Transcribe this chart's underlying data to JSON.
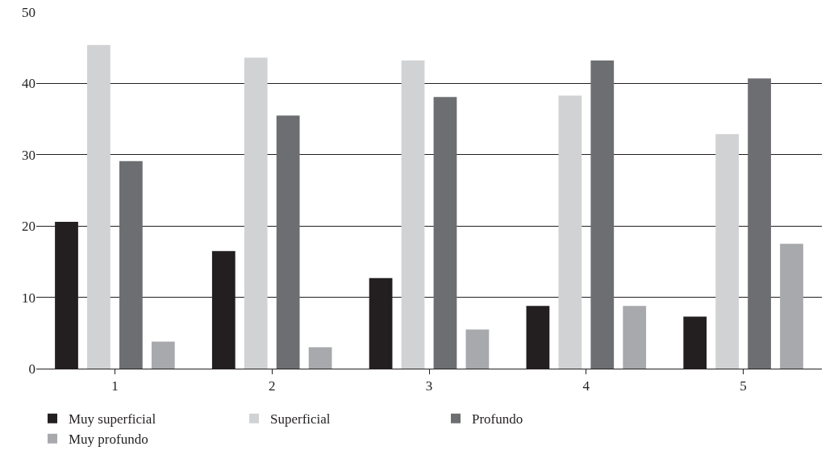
{
  "chart_data": {
    "type": "bar",
    "categories": [
      "1",
      "2",
      "3",
      "4",
      "5"
    ],
    "series": [
      {
        "name": "Muy superficial",
        "color": "#231f20",
        "values": [
          20.6,
          16.5,
          12.7,
          8.8,
          7.3
        ]
      },
      {
        "name": "Superficial",
        "color": "#d1d2d4",
        "values": [
          45.4,
          43.6,
          43.2,
          38.3,
          32.9
        ]
      },
      {
        "name": "Profundo",
        "color": "#6d6e71",
        "values": [
          29.1,
          35.5,
          38.1,
          43.2,
          40.7
        ]
      },
      {
        "name": "Muy profundo",
        "color": "#a7a9ac",
        "values": [
          3.8,
          3.0,
          5.5,
          8.8,
          17.5
        ]
      }
    ],
    "ylim": [
      0,
      50
    ],
    "yticks": [
      0,
      10,
      20,
      30,
      40,
      50
    ],
    "grid": "y",
    "legend": "bottom"
  }
}
